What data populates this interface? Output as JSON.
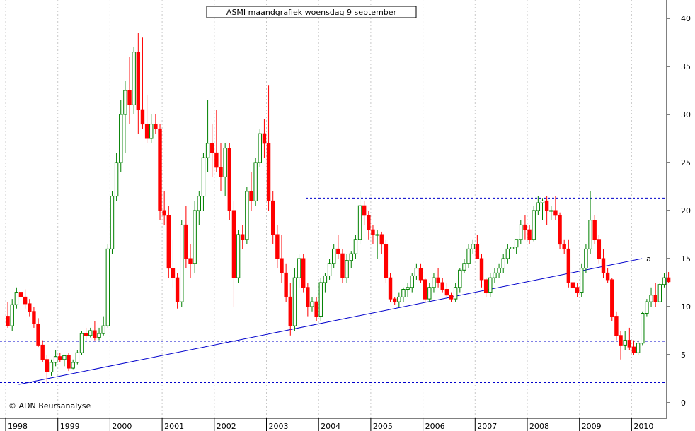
{
  "chart_data": {
    "type": "candlestick",
    "title": "ASMI maandgrafiek woensdag 9 september",
    "credit": "© ADN Beursanalyse",
    "xlabel": "",
    "ylabel": "",
    "ylim": [
      -1,
      41
    ],
    "xlim": [
      1998.0,
      2010.5
    ],
    "y_ticks": [
      0,
      5,
      10,
      15,
      20,
      25,
      30,
      35,
      40
    ],
    "x_ticks": [
      "1998",
      "1999",
      "2000",
      "2001",
      "2002",
      "2003",
      "2004",
      "2005",
      "2006",
      "2007",
      "2008",
      "2009",
      "2010"
    ],
    "grid": "vertical-dotted",
    "colors": {
      "up": "#008000",
      "down": "#ff0000",
      "line": "#0000cc",
      "grid": "#c8c8c8"
    },
    "horizontal_lines": [
      2.1,
      6.4,
      21.3
    ],
    "trendline": {
      "label": "a",
      "from": [
        1998.25,
        1.9
      ],
      "to": [
        2010.2,
        15.0
      ]
    },
    "start": [
      1998,
      1
    ],
    "months": [
      [
        9.0,
        10.5,
        7.8,
        8.0
      ],
      [
        8.0,
        10.8,
        7.5,
        10.2
      ],
      [
        10.2,
        12.0,
        9.8,
        11.5
      ],
      [
        11.5,
        12.8,
        10.5,
        11.0
      ],
      [
        11.0,
        11.8,
        9.8,
        10.3
      ],
      [
        10.3,
        10.8,
        9.0,
        9.5
      ],
      [
        9.5,
        10.0,
        7.8,
        8.2
      ],
      [
        8.2,
        8.8,
        5.8,
        6.0
      ],
      [
        6.0,
        6.5,
        4.2,
        4.5
      ],
      [
        4.5,
        5.0,
        2.0,
        3.2
      ],
      [
        3.2,
        4.5,
        2.8,
        4.2
      ],
      [
        4.2,
        5.5,
        3.8,
        4.8
      ],
      [
        4.8,
        5.2,
        4.2,
        4.5
      ],
      [
        4.5,
        5.0,
        3.8,
        4.9
      ],
      [
        4.9,
        5.2,
        3.3,
        3.6
      ],
      [
        3.6,
        4.5,
        3.5,
        4.2
      ],
      [
        4.2,
        5.5,
        4.0,
        5.2
      ],
      [
        5.2,
        7.5,
        5.0,
        7.2
      ],
      [
        7.2,
        7.8,
        6.5,
        7.0
      ],
      [
        7.0,
        7.8,
        6.8,
        7.5
      ],
      [
        7.5,
        8.5,
        6.5,
        6.8
      ],
      [
        6.8,
        7.8,
        6.5,
        7.2
      ],
      [
        7.2,
        9.0,
        7.0,
        8.0
      ],
      [
        8.0,
        16.5,
        7.8,
        16.0
      ],
      [
        16.0,
        22.0,
        15.5,
        21.5
      ],
      [
        21.5,
        26.0,
        21.0,
        25.0
      ],
      [
        25.0,
        31.5,
        24.0,
        30.0
      ],
      [
        30.0,
        33.5,
        26.0,
        32.5
      ],
      [
        32.5,
        36.0,
        29.0,
        31.0
      ],
      [
        31.0,
        37.0,
        30.0,
        36.5
      ],
      [
        36.5,
        38.5,
        28.0,
        30.5
      ],
      [
        30.5,
        38.0,
        28.5,
        29.0
      ],
      [
        29.0,
        32.0,
        27.0,
        27.5
      ],
      [
        27.5,
        30.0,
        27.0,
        29.0
      ],
      [
        29.0,
        30.0,
        28.0,
        28.5
      ],
      [
        28.5,
        29.0,
        19.0,
        20.0
      ],
      [
        20.0,
        22.0,
        18.5,
        19.5
      ],
      [
        19.5,
        20.5,
        13.0,
        14.0
      ],
      [
        14.0,
        17.0,
        12.0,
        13.0
      ],
      [
        13.0,
        13.5,
        9.8,
        10.5
      ],
      [
        10.5,
        19.0,
        10.0,
        18.5
      ],
      [
        18.5,
        20.5,
        14.0,
        15.0
      ],
      [
        15.0,
        16.5,
        13.0,
        14.5
      ],
      [
        14.5,
        21.0,
        13.5,
        20.0
      ],
      [
        20.0,
        22.0,
        18.5,
        21.5
      ],
      [
        21.5,
        26.0,
        20.0,
        25.5
      ],
      [
        25.5,
        31.5,
        24.0,
        27.0
      ],
      [
        27.0,
        29.0,
        23.5,
        26.0
      ],
      [
        26.0,
        30.5,
        24.0,
        24.5
      ],
      [
        24.5,
        27.0,
        22.0,
        23.5
      ],
      [
        23.5,
        27.0,
        21.5,
        26.5
      ],
      [
        26.5,
        27.0,
        19.0,
        20.0
      ],
      [
        20.0,
        21.0,
        10.0,
        13.0
      ],
      [
        13.0,
        18.0,
        12.5,
        17.5
      ],
      [
        17.5,
        18.5,
        16.0,
        17.0
      ],
      [
        17.0,
        22.5,
        16.5,
        22.0
      ],
      [
        22.0,
        24.0,
        20.0,
        21.0
      ],
      [
        21.0,
        25.5,
        20.5,
        25.0
      ],
      [
        25.0,
        28.5,
        24.5,
        28.0
      ],
      [
        28.0,
        29.5,
        25.5,
        27.0
      ],
      [
        27.0,
        33.0,
        20.0,
        21.0
      ],
      [
        21.0,
        22.0,
        16.5,
        17.5
      ],
      [
        17.5,
        18.5,
        14.0,
        15.0
      ],
      [
        15.0,
        17.5,
        12.5,
        13.5
      ],
      [
        13.5,
        14.5,
        10.5,
        11.0
      ],
      [
        11.0,
        12.5,
        7.0,
        8.0
      ],
      [
        8.0,
        14.0,
        7.5,
        13.0
      ],
      [
        13.0,
        15.5,
        12.0,
        15.0
      ],
      [
        15.0,
        15.5,
        11.5,
        12.0
      ],
      [
        12.0,
        12.5,
        9.0,
        10.0
      ],
      [
        10.0,
        11.0,
        9.5,
        10.5
      ],
      [
        10.5,
        11.0,
        8.5,
        9.0
      ],
      [
        9.0,
        13.0,
        8.5,
        12.5
      ],
      [
        12.5,
        13.5,
        11.5,
        13.2
      ],
      [
        13.2,
        15.0,
        12.8,
        14.5
      ],
      [
        14.5,
        16.5,
        14.0,
        16.0
      ],
      [
        16.0,
        17.5,
        15.0,
        15.5
      ],
      [
        15.5,
        16.0,
        12.5,
        13.0
      ],
      [
        13.0,
        15.5,
        12.5,
        14.8
      ],
      [
        14.8,
        15.8,
        14.0,
        15.5
      ],
      [
        15.5,
        17.5,
        15.0,
        17.0
      ],
      [
        17.0,
        22.0,
        16.5,
        20.5
      ],
      [
        20.5,
        21.0,
        18.5,
        19.5
      ],
      [
        19.5,
        20.0,
        17.0,
        18.0
      ],
      [
        18.0,
        18.5,
        16.5,
        17.5
      ],
      [
        17.5,
        18.0,
        15.0,
        17.5
      ],
      [
        17.5,
        17.8,
        15.5,
        16.5
      ],
      [
        16.5,
        17.0,
        12.5,
        13.0
      ],
      [
        13.0,
        13.5,
        10.5,
        10.8
      ],
      [
        10.8,
        11.0,
        10.2,
        10.5
      ],
      [
        10.5,
        11.5,
        10.0,
        11.0
      ],
      [
        11.0,
        12.0,
        10.5,
        11.8
      ],
      [
        11.8,
        12.5,
        11.0,
        12.0
      ],
      [
        12.0,
        13.5,
        11.5,
        13.2
      ],
      [
        13.2,
        14.5,
        12.8,
        14.0
      ],
      [
        14.0,
        14.5,
        12.5,
        12.8
      ],
      [
        12.8,
        13.0,
        10.5,
        10.8
      ],
      [
        10.8,
        12.5,
        10.5,
        12.0
      ],
      [
        12.0,
        13.5,
        11.5,
        13.0
      ],
      [
        13.0,
        14.0,
        12.0,
        12.5
      ],
      [
        12.5,
        13.0,
        11.5,
        11.8
      ],
      [
        11.8,
        12.5,
        11.0,
        11.2
      ],
      [
        11.2,
        11.5,
        10.5,
        10.8
      ],
      [
        10.8,
        12.5,
        10.5,
        12.0
      ],
      [
        12.0,
        14.0,
        11.5,
        13.8
      ],
      [
        13.8,
        15.0,
        13.5,
        14.5
      ],
      [
        14.5,
        16.5,
        14.0,
        16.0
      ],
      [
        16.0,
        17.0,
        15.5,
        16.5
      ],
      [
        16.5,
        17.5,
        15.0,
        15.0
      ],
      [
        15.0,
        15.5,
        12.0,
        12.8
      ],
      [
        12.8,
        13.0,
        11.0,
        11.5
      ],
      [
        11.5,
        13.5,
        11.0,
        13.0
      ],
      [
        13.0,
        14.0,
        12.5,
        13.5
      ],
      [
        13.5,
        14.5,
        13.0,
        14.0
      ],
      [
        14.0,
        15.5,
        13.5,
        15.0
      ],
      [
        15.0,
        16.5,
        14.5,
        16.0
      ],
      [
        16.0,
        16.5,
        15.0,
        16.2
      ],
      [
        16.2,
        17.0,
        15.5,
        17.0
      ],
      [
        17.0,
        19.0,
        16.5,
        18.5
      ],
      [
        18.5,
        19.5,
        17.0,
        18.0
      ],
      [
        18.0,
        18.5,
        16.5,
        17.0
      ],
      [
        17.0,
        20.5,
        16.8,
        20.0
      ],
      [
        20.0,
        21.5,
        19.5,
        20.8
      ],
      [
        20.8,
        21.3,
        19.0,
        21.0
      ],
      [
        21.0,
        21.5,
        18.5,
        20.0
      ],
      [
        20.0,
        20.5,
        19.0,
        20.0
      ],
      [
        20.0,
        21.5,
        19.0,
        19.5
      ],
      [
        19.5,
        19.8,
        16.0,
        16.5
      ],
      [
        16.5,
        17.0,
        15.5,
        16.0
      ],
      [
        16.0,
        17.0,
        12.0,
        12.5
      ],
      [
        12.5,
        13.0,
        11.5,
        12.0
      ],
      [
        12.0,
        12.5,
        11.0,
        11.5
      ],
      [
        11.5,
        14.5,
        11.0,
        14.0
      ],
      [
        14.0,
        16.5,
        13.5,
        16.0
      ],
      [
        16.0,
        22.0,
        15.5,
        19.0
      ],
      [
        19.0,
        19.5,
        16.5,
        17.0
      ],
      [
        17.0,
        17.5,
        14.5,
        15.0
      ],
      [
        15.0,
        16.0,
        13.0,
        13.5
      ],
      [
        13.5,
        14.0,
        12.5,
        12.8
      ],
      [
        12.8,
        13.0,
        8.5,
        9.0
      ],
      [
        9.0,
        9.5,
        6.5,
        7.0
      ],
      [
        7.0,
        7.5,
        4.5,
        6.0
      ],
      [
        6.0,
        7.5,
        5.5,
        6.5
      ],
      [
        6.5,
        7.8,
        5.5,
        5.8
      ],
      [
        5.8,
        6.5,
        5.0,
        5.2
      ],
      [
        5.2,
        6.5,
        5.0,
        6.2
      ],
      [
        6.2,
        9.5,
        6.0,
        9.3
      ],
      [
        9.3,
        10.8,
        9.0,
        10.5
      ],
      [
        10.5,
        12.0,
        10.0,
        11.2
      ],
      [
        11.2,
        12.5,
        10.0,
        10.5
      ],
      [
        10.5,
        12.5,
        10.5,
        12.3
      ],
      [
        12.3,
        13.5,
        12.0,
        13.0
      ],
      [
        13.0,
        13.6,
        12.5,
        12.6
      ]
    ]
  }
}
